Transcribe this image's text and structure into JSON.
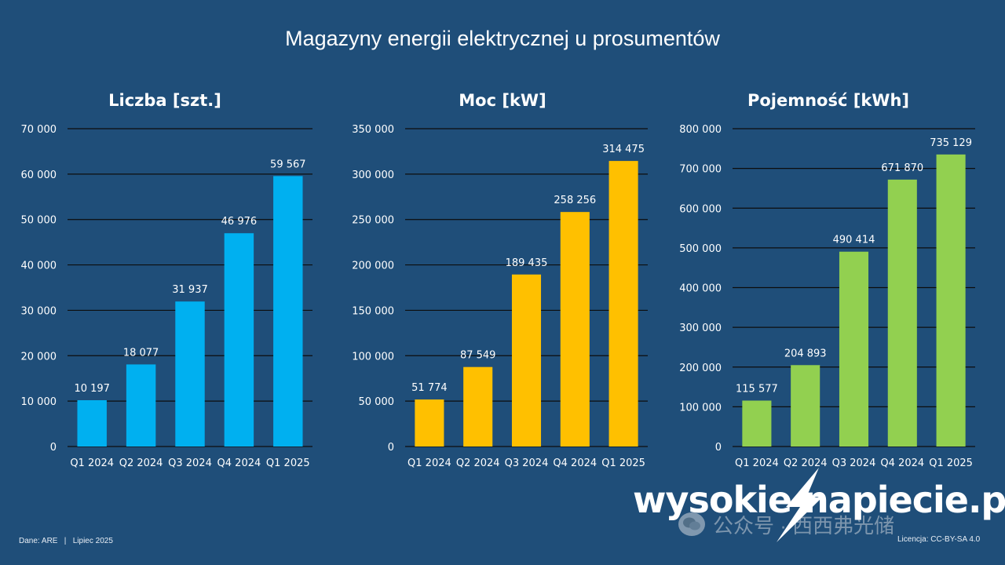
{
  "title": "Magazyny energii elektrycznej u prosumentów",
  "footer": {
    "source": "Dane: ARE   |   Lipiec 2025",
    "license": "Licencja: CC-BY-SA 4.0"
  },
  "logo": {
    "text": "wysokie napiecie.pl",
    "icon": "lightning-bolt-icon"
  },
  "watermark": {
    "text": "公众号 · 西西弗光储",
    "icon": "wechat-icon"
  },
  "chart_data": [
    {
      "type": "bar",
      "title": "Liczba [szt.]",
      "categories": [
        "Q1 2024",
        "Q2 2024",
        "Q3 2024",
        "Q4 2024",
        "Q1 2025"
      ],
      "values": [
        10197,
        18077,
        31937,
        46976,
        59567
      ],
      "data_labels": [
        "10 197",
        "18 077",
        "31 937",
        "46 976",
        "59 567"
      ],
      "ylim": [
        0,
        70000
      ],
      "yticks": [
        0,
        10000,
        20000,
        30000,
        40000,
        50000,
        60000,
        70000
      ],
      "ytick_labels": [
        "0",
        "10 000",
        "20 000",
        "30 000",
        "40 000",
        "50 000",
        "60 000",
        "70 000"
      ],
      "color": "#00b0f0",
      "grid": true
    },
    {
      "type": "bar",
      "title": "Moc [kW]",
      "categories": [
        "Q1 2024",
        "Q2 2024",
        "Q3 2024",
        "Q4 2024",
        "Q1 2025"
      ],
      "values": [
        51774,
        87549,
        189435,
        258256,
        314475
      ],
      "data_labels": [
        "51 774",
        "87 549",
        "189 435",
        "258 256",
        "314 475"
      ],
      "ylim": [
        0,
        350000
      ],
      "yticks": [
        0,
        50000,
        100000,
        150000,
        200000,
        250000,
        300000,
        350000
      ],
      "ytick_labels": [
        "0",
        "50 000",
        "100 000",
        "150 000",
        "200 000",
        "250 000",
        "300 000",
        "350 000"
      ],
      "color": "#ffc000",
      "grid": true
    },
    {
      "type": "bar",
      "title": "Pojemność [kWh]",
      "categories": [
        "Q1 2024",
        "Q2 2024",
        "Q3 2024",
        "Q4 2024",
        "Q1 2025"
      ],
      "values": [
        115577,
        204893,
        490414,
        671870,
        735129
      ],
      "data_labels": [
        "115 577",
        "204 893",
        "490 414",
        "671 870",
        "735 129"
      ],
      "ylim": [
        0,
        800000
      ],
      "yticks": [
        0,
        100000,
        200000,
        300000,
        400000,
        500000,
        600000,
        700000,
        800000
      ],
      "ytick_labels": [
        "0",
        "100 000",
        "200 000",
        "300 000",
        "400 000",
        "500 000",
        "600 000",
        "700 000",
        "800 000"
      ],
      "color": "#92d050",
      "grid": true
    }
  ]
}
